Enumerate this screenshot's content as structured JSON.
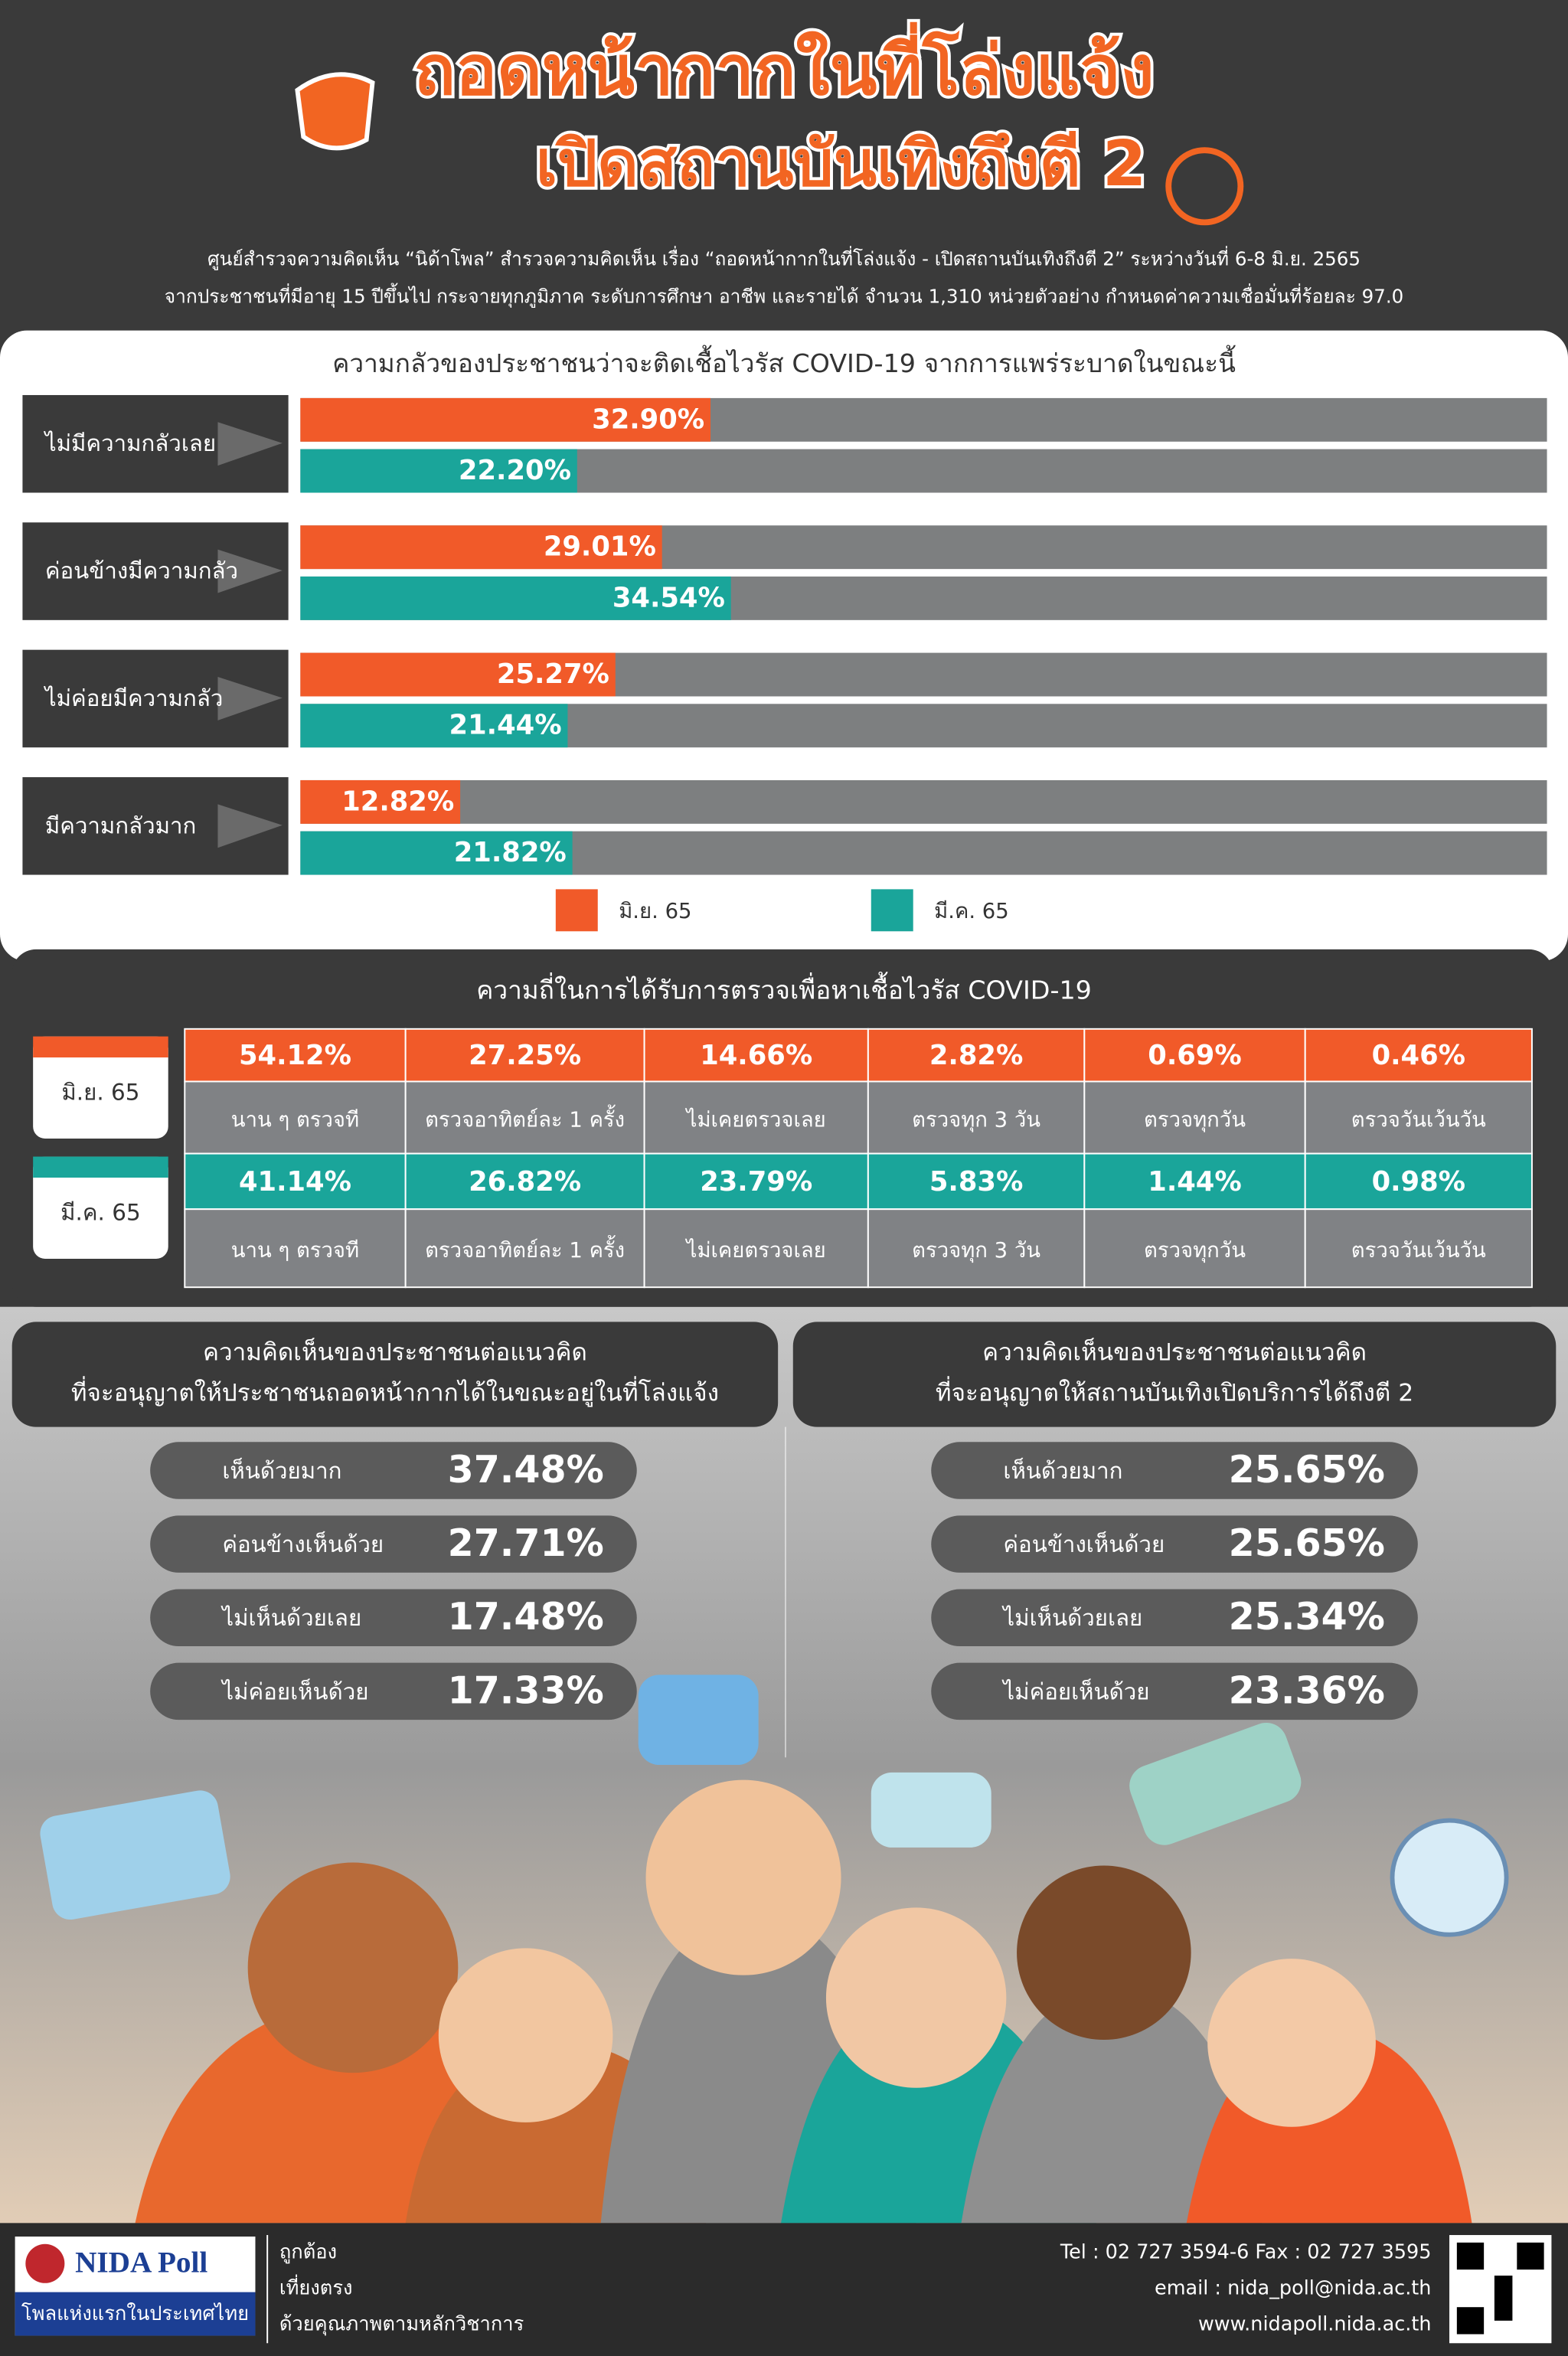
{
  "header": {
    "title_line1": "ถอดหน้ากากในที่โล่งแจ้ง",
    "title_line2": "เปิดสถานบันเทิงถึงตี 2",
    "subtitle_line1": "ศูนย์สำรวจความคิดเห็น “นิด้าโพล” สำรวจความคิดเห็น เรื่อง “ถอดหน้ากากในที่โล่งแจ้ง - เปิดสถานบันเทิงถึงตี 2” ระหว่างวันที่ 6-8 มิ.ย. 2565",
    "subtitle_line2": "จากประชาชนที่มีอายุ 15 ปีขึ้นไป กระจายทุกภูมิภาค ระดับการศึกษา อาชีพ และรายได้ จำนวน 1,310 หน่วยตัวอย่าง กำหนดค่าความเชื่อมั่นที่ร้อยละ 97.0"
  },
  "chart_data": {
    "type": "bar",
    "orientation": "horizontal",
    "title": "ความกลัวของประชาชนว่าจะติดเชื้อไวรัส COVID-19 จากการแพร่ระบาดในขณะนี้",
    "categories": [
      "ไม่มีความกลัวเลย",
      "ค่อนข้างมีความกลัว",
      "ไม่ค่อยมีความกลัว",
      "มีความกลัวมาก"
    ],
    "xlim": [
      0,
      100
    ],
    "track_color": "#7d7f80",
    "series": [
      {
        "name": "มิ.ย. 65",
        "color": "#f15a29",
        "values": [
          32.9,
          29.01,
          25.27,
          12.82
        ],
        "value_labels": [
          "32.90%",
          "29.01%",
          "25.27%",
          "12.82%"
        ]
      },
      {
        "name": "มี.ค. 65",
        "color": "#1aa59a",
        "values": [
          22.2,
          34.54,
          21.44,
          21.82
        ],
        "value_labels": [
          "22.20%",
          "34.54%",
          "21.44%",
          "21.82%"
        ]
      }
    ]
  },
  "test_frequency": {
    "title": "ความถี่ในการได้รับการตรวจเพื่อหาเชื้อไวรัส COVID-19",
    "rows": [
      {
        "label": "มิ.ย. 65",
        "values": [
          "54.12%",
          "27.25%",
          "14.66%",
          "2.82%",
          "0.69%",
          "0.46%"
        ],
        "answers": [
          "นาน ๆ ตรวจที",
          "ตรวจอาทิตย์ละ 1 ครั้ง",
          "ไม่เคยตรวจเลย",
          "ตรวจทุก 3 วัน",
          "ตรวจทุกวัน",
          "ตรวจวันเว้นวัน"
        ]
      },
      {
        "label": "มี.ค. 65",
        "values": [
          "41.14%",
          "26.82%",
          "23.79%",
          "5.83%",
          "1.44%",
          "0.98%"
        ],
        "answers": [
          "นาน ๆ ตรวจที",
          "ตรวจอาทิตย์ละ 1 ครั้ง",
          "ไม่เคยตรวจเลย",
          "ตรวจทุก 3 วัน",
          "ตรวจทุกวัน",
          "ตรวจวันเว้นวัน"
        ]
      }
    ]
  },
  "opinions": [
    {
      "title_line1": "ความคิดเห็นของประชาชนต่อแนวคิด",
      "title_line2": "ที่จะอนุญาตให้ประชาชนถอดหน้ากากได้ในขณะอยู่ในที่โล่งแจ้ง",
      "items": [
        {
          "label": "เห็นด้วยมาก",
          "value": "37.48%"
        },
        {
          "label": "ค่อนข้างเห็นด้วย",
          "value": "27.71%"
        },
        {
          "label": "ไม่เห็นด้วยเลย",
          "value": "17.48%"
        },
        {
          "label": "ไม่ค่อยเห็นด้วย",
          "value": "17.33%"
        }
      ]
    },
    {
      "title_line1": "ความคิดเห็นของประชาชนต่อแนวคิด",
      "title_line2": "ที่จะอนุญาตให้สถานบันเทิงเปิดบริการได้ถึงตี 2",
      "items": [
        {
          "label": "เห็นด้วยมาก",
          "value": "25.65%"
        },
        {
          "label": "ค่อนข้างเห็นด้วย",
          "value": "25.65%"
        },
        {
          "label": "ไม่เห็นด้วยเลย",
          "value": "25.34%"
        },
        {
          "label": "ไม่ค่อยเห็นด้วย",
          "value": "23.36%"
        }
      ]
    }
  ],
  "footer": {
    "logo_name": "NIDA Poll",
    "logo_tagline": "โพลแห่งแรกในประเทศไทย",
    "motto": [
      "ถูกต้อง",
      "เที่ยงตรง",
      "ด้วยคุณภาพตามหลักวิชาการ"
    ],
    "contact": [
      "Tel : 02 727 3594-6 Fax : 02 727 3595",
      "email : nida_poll@nida.ac.th",
      "www.nidapoll.nida.ac.th"
    ]
  }
}
